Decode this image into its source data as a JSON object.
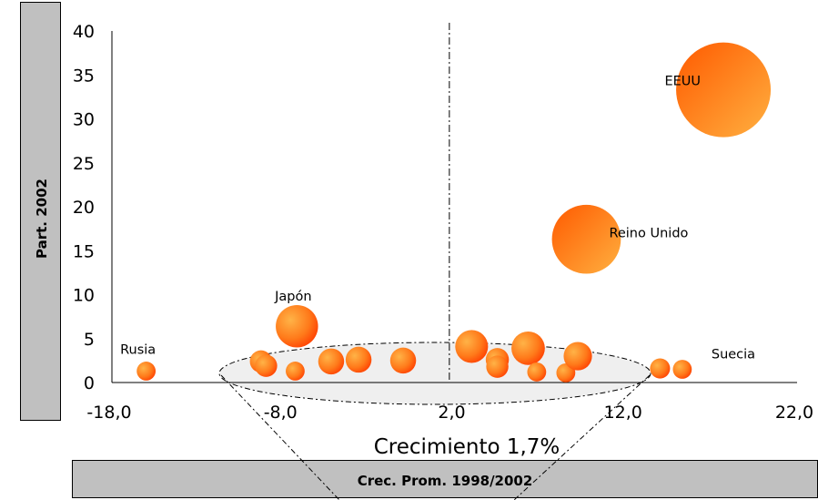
{
  "chart_data": {
    "type": "scatter",
    "ylabel": "Part. 2002",
    "xlabel": "Crec. Prom. 1998/2002",
    "annotation": "Crecimiento 1,7%",
    "x_ticks": [
      "-18,0",
      "-8,0",
      "2,0",
      "12,0",
      "22,0"
    ],
    "y_ticks": [
      "0",
      "5",
      "10",
      "15",
      "20",
      "25",
      "30",
      "35",
      "40"
    ],
    "xlim": [
      -18,
      22
    ],
    "ylim": [
      0,
      40
    ],
    "reference_x": 1.7,
    "points": [
      {
        "label": "EEUU",
        "x": 17.7,
        "y": 33.3,
        "size": 10
      },
      {
        "label": "Reino Unido",
        "x": 9.7,
        "y": 16.3,
        "size": 5.3
      },
      {
        "label": "Japón",
        "x": -7.2,
        "y": 6.4,
        "size": 2.0
      },
      {
        "label": "Rusia",
        "x": -16.0,
        "y": 1.3,
        "size": 0.4
      },
      {
        "label": "Suecia",
        "x": 15.3,
        "y": 1.5,
        "size": 0.4
      },
      {
        "label": "",
        "x": -9.3,
        "y": 2.4,
        "size": 0.55
      },
      {
        "label": "",
        "x": -9.0,
        "y": 1.9,
        "size": 0.55
      },
      {
        "label": "",
        "x": -7.3,
        "y": 1.3,
        "size": 0.4
      },
      {
        "label": "",
        "x": -5.2,
        "y": 2.4,
        "size": 0.75
      },
      {
        "label": "",
        "x": -3.6,
        "y": 2.6,
        "size": 0.75
      },
      {
        "label": "",
        "x": -1.0,
        "y": 2.5,
        "size": 0.75
      },
      {
        "label": "",
        "x": 3.0,
        "y": 4.1,
        "size": 1.2
      },
      {
        "label": "",
        "x": 4.5,
        "y": 2.6,
        "size": 0.6
      },
      {
        "label": "",
        "x": 4.5,
        "y": 1.8,
        "size": 0.55
      },
      {
        "label": "",
        "x": 6.3,
        "y": 3.9,
        "size": 1.25
      },
      {
        "label": "",
        "x": 6.8,
        "y": 1.2,
        "size": 0.4
      },
      {
        "label": "",
        "x": 8.5,
        "y": 1.1,
        "size": 0.4
      },
      {
        "label": "",
        "x": 9.2,
        "y": 3.0,
        "size": 0.9
      },
      {
        "label": "",
        "x": 14.0,
        "y": 1.6,
        "size": 0.45
      }
    ],
    "colors": {
      "bubble_light": "#ffb347",
      "bubble_dark": "#ff3c00",
      "panel": "#c0c0c0",
      "ellipse": "#efefef"
    }
  }
}
